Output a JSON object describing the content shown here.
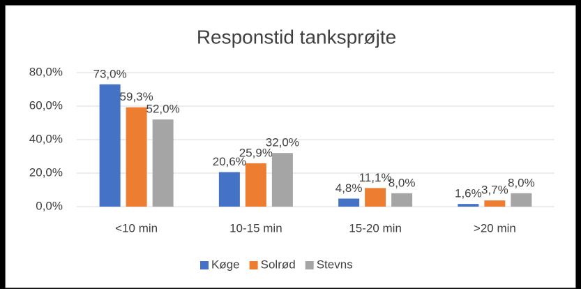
{
  "chart_data": {
    "type": "bar",
    "title": "Responstid tanksprøjte",
    "categories": [
      "<10 min",
      "10-15 min",
      "15-20 min",
      ">20 min"
    ],
    "series": [
      {
        "name": "Køge",
        "color": "#4472c4",
        "values": [
          73.0,
          20.6,
          4.8,
          1.6
        ],
        "value_labels": [
          "73,0%",
          "20,6%",
          "4,8%",
          "1,6%"
        ]
      },
      {
        "name": "Solrød",
        "color": "#ed7d31",
        "values": [
          59.3,
          25.9,
          11.1,
          3.7
        ],
        "value_labels": [
          "59,3%",
          "25,9%",
          "11,1%",
          "3,7%"
        ]
      },
      {
        "name": "Stevns",
        "color": "#a5a5a5",
        "values": [
          52.0,
          32.0,
          8.0,
          8.0
        ],
        "value_labels": [
          "52,0%",
          "32,0%",
          "8,0%",
          "8,0%"
        ]
      }
    ],
    "ylim": [
      0,
      80
    ],
    "yticks": [
      {
        "value": 0,
        "label": "0,0%"
      },
      {
        "value": 20,
        "label": "20,0%"
      },
      {
        "value": 40,
        "label": "40,0%"
      },
      {
        "value": 60,
        "label": "60,0%"
      },
      {
        "value": 80,
        "label": "80,0%"
      }
    ],
    "grid": true,
    "legend": "bottom"
  }
}
